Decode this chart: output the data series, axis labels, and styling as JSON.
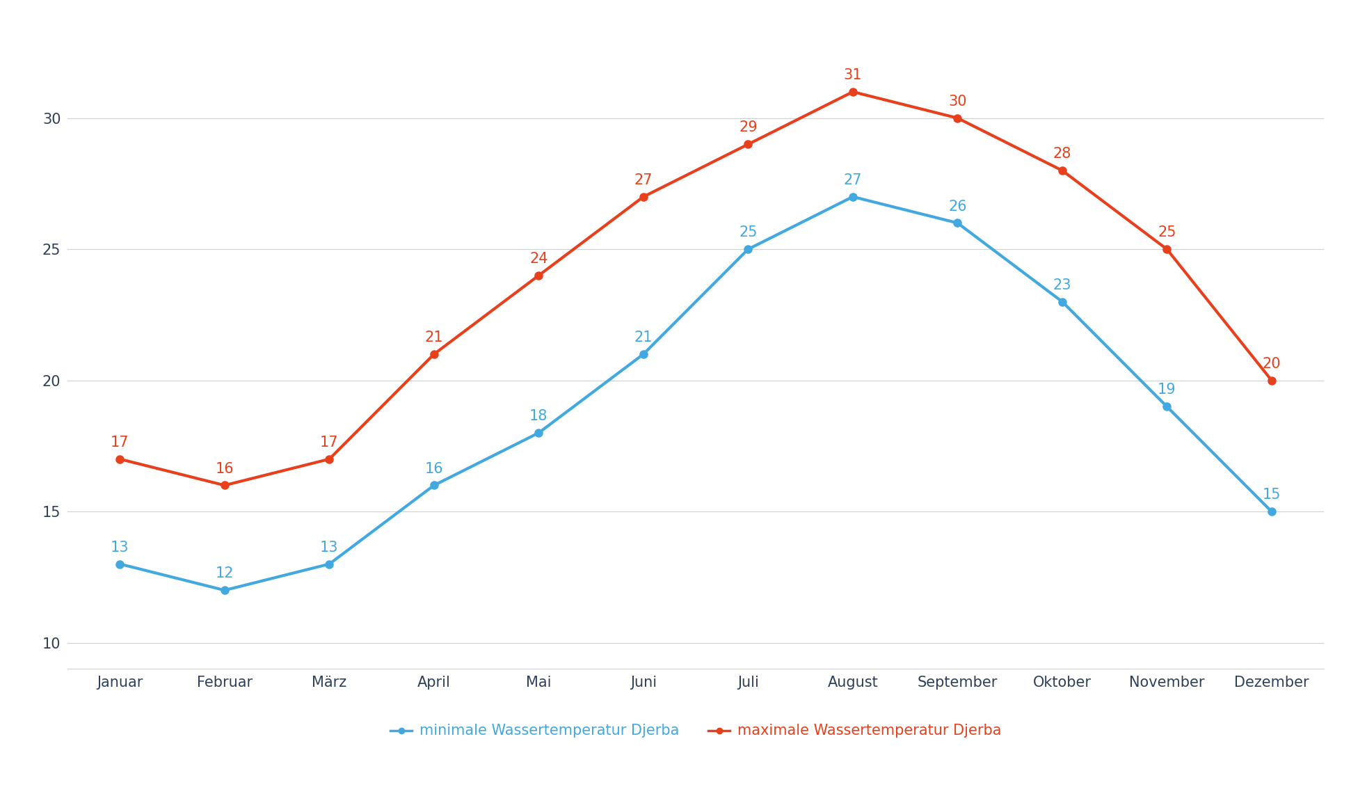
{
  "months": [
    "Januar",
    "Februar",
    "März",
    "April",
    "Mai",
    "Juni",
    "Juli",
    "August",
    "September",
    "Oktober",
    "November",
    "Dezember"
  ],
  "min_temps": [
    13,
    12,
    13,
    16,
    18,
    21,
    25,
    27,
    26,
    23,
    19,
    15
  ],
  "max_temps": [
    17,
    16,
    17,
    21,
    24,
    27,
    29,
    31,
    30,
    28,
    25,
    20
  ],
  "min_color": "#41A8E0",
  "max_color": "#E8401C",
  "min_label": "minimale Wassertemperatur Djerba",
  "max_label": "maximale Wassertemperatur Djerba",
  "ylim": [
    9,
    33
  ],
  "yticks": [
    10,
    15,
    20,
    25,
    30
  ],
  "background_color": "#ffffff",
  "grid_color": "#d0d0d0",
  "tick_label_color": "#2E4057",
  "linewidth": 3.0,
  "markersize": 8,
  "annotation_fontsize": 15,
  "axis_label_fontsize": 15,
  "legend_fontsize": 15
}
